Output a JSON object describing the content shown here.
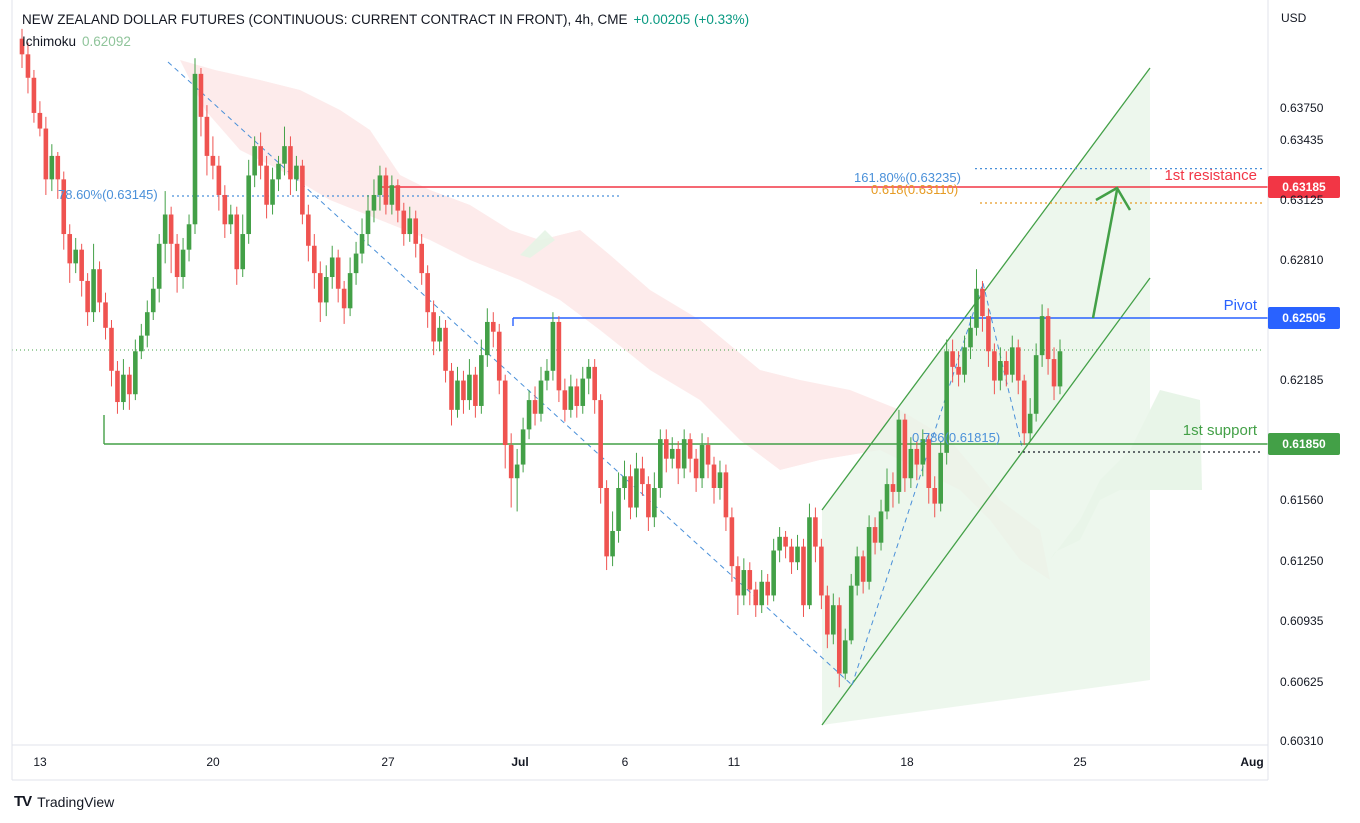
{
  "header": {
    "title": "NEW ZEALAND DOLLAR FUTURES (CONTINUOUS: CURRENT CONTRACT IN FRONT), 4h, CME",
    "change": "+0.00205 (+0.33%)",
    "indicator_name": "Ichimoku",
    "indicator_value": "0.62092"
  },
  "axis_currency": "USD",
  "brand": "TradingView",
  "colors": {
    "bull": "#43a047",
    "bear": "#ef5350",
    "resistance": "#f23645",
    "pivot": "#2962ff",
    "support": "#43a047",
    "cloud_bear": "#fce4e4",
    "cloud_bull": "#e6f4e6",
    "channel_fill": "#e8f5e9"
  },
  "chart_data": {
    "type": "candlestick",
    "y_axis": {
      "ticks": [
        "0.63750",
        "0.63435",
        "0.63125",
        "0.62810",
        "0.62185",
        "0.61560",
        "0.61250",
        "0.60935",
        "0.60625",
        "0.60310"
      ],
      "range": [
        0.6028,
        0.6395
      ]
    },
    "x_axis": {
      "labels": [
        "13",
        "20",
        "27",
        "Jul",
        "6",
        "11",
        "18",
        "25",
        "Aug"
      ]
    },
    "levels": [
      {
        "name": "1st resistance",
        "value": "0.63185"
      },
      {
        "name": "Pivot",
        "value": "0.62505"
      },
      {
        "name": "1st support",
        "value": "0.61850"
      }
    ],
    "fibonacci_labels": [
      {
        "text": "161.80%(0.63235)",
        "value": 0.63235
      },
      {
        "text": "0.618(0.63110)",
        "value": 0.6311
      },
      {
        "text": "78.60%(0.63145)",
        "value": 0.63145
      },
      {
        "text": "0.786(0.61815)",
        "value": 0.61815
      }
    ],
    "candles": [
      [
        0.639,
        0.6382,
        0.6395,
        0.6375
      ],
      [
        0.6382,
        0.637,
        0.6388,
        0.6362
      ],
      [
        0.637,
        0.6352,
        0.6374,
        0.6347
      ],
      [
        0.6352,
        0.6344,
        0.6358,
        0.634
      ],
      [
        0.6344,
        0.6318,
        0.635,
        0.631
      ],
      [
        0.6318,
        0.633,
        0.6336,
        0.6312
      ],
      [
        0.633,
        0.6318,
        0.6332,
        0.6308
      ],
      [
        0.6318,
        0.629,
        0.6322,
        0.6282
      ],
      [
        0.629,
        0.6275,
        0.6295,
        0.6265
      ],
      [
        0.6275,
        0.6282,
        0.6288,
        0.627
      ],
      [
        0.6282,
        0.6266,
        0.6285,
        0.6258
      ],
      [
        0.6266,
        0.625,
        0.627,
        0.6243
      ],
      [
        0.625,
        0.6272,
        0.6285,
        0.6245
      ],
      [
        0.6272,
        0.6255,
        0.6276,
        0.625
      ],
      [
        0.6255,
        0.6242,
        0.626,
        0.6236
      ],
      [
        0.6242,
        0.622,
        0.6246,
        0.6212
      ],
      [
        0.622,
        0.6204,
        0.6225,
        0.6198
      ],
      [
        0.6204,
        0.6218,
        0.6226,
        0.62
      ],
      [
        0.6218,
        0.6208,
        0.6222,
        0.62
      ],
      [
        0.6208,
        0.623,
        0.6236,
        0.6205
      ],
      [
        0.623,
        0.6238,
        0.6244,
        0.6226
      ],
      [
        0.6238,
        0.625,
        0.6256,
        0.6232
      ],
      [
        0.625,
        0.6262,
        0.6268,
        0.6246
      ],
      [
        0.6262,
        0.6285,
        0.629,
        0.6255
      ],
      [
        0.6285,
        0.63,
        0.6312,
        0.6275
      ],
      [
        0.63,
        0.6285,
        0.6304,
        0.627
      ],
      [
        0.6285,
        0.6268,
        0.629,
        0.626
      ],
      [
        0.6268,
        0.6282,
        0.6288,
        0.6262
      ],
      [
        0.6282,
        0.6295,
        0.63,
        0.6276
      ],
      [
        0.6295,
        0.6372,
        0.638,
        0.629
      ],
      [
        0.6372,
        0.635,
        0.6375,
        0.634
      ],
      [
        0.635,
        0.633,
        0.6356,
        0.632
      ],
      [
        0.633,
        0.6325,
        0.634,
        0.6318
      ],
      [
        0.6325,
        0.631,
        0.633,
        0.6302
      ],
      [
        0.631,
        0.6295,
        0.6315,
        0.6288
      ],
      [
        0.6295,
        0.63,
        0.6305,
        0.629
      ],
      [
        0.63,
        0.6272,
        0.6304,
        0.6264
      ],
      [
        0.6272,
        0.629,
        0.63,
        0.6268
      ],
      [
        0.629,
        0.632,
        0.6328,
        0.6285
      ],
      [
        0.632,
        0.6335,
        0.634,
        0.6314
      ],
      [
        0.6335,
        0.6325,
        0.6342,
        0.6318
      ],
      [
        0.6325,
        0.6305,
        0.633,
        0.6298
      ],
      [
        0.6305,
        0.6318,
        0.6324,
        0.63
      ],
      [
        0.6318,
        0.6326,
        0.633,
        0.6312
      ],
      [
        0.6326,
        0.6335,
        0.6345,
        0.632
      ],
      [
        0.6335,
        0.6318,
        0.634,
        0.631
      ],
      [
        0.6318,
        0.6325,
        0.633,
        0.6312
      ],
      [
        0.6325,
        0.63,
        0.6328,
        0.6295
      ],
      [
        0.63,
        0.6284,
        0.6305,
        0.6276
      ],
      [
        0.6284,
        0.627,
        0.629,
        0.6262
      ],
      [
        0.627,
        0.6255,
        0.6276,
        0.6245
      ],
      [
        0.6255,
        0.6268,
        0.6274,
        0.6248
      ],
      [
        0.6268,
        0.6278,
        0.6284,
        0.6262
      ],
      [
        0.6278,
        0.6262,
        0.6282,
        0.6255
      ],
      [
        0.6262,
        0.6252,
        0.6266,
        0.6244
      ],
      [
        0.6252,
        0.627,
        0.6278,
        0.6248
      ],
      [
        0.627,
        0.628,
        0.6286,
        0.6264
      ],
      [
        0.628,
        0.629,
        0.6298,
        0.6275
      ],
      [
        0.629,
        0.6302,
        0.631,
        0.6284
      ],
      [
        0.6302,
        0.631,
        0.6318,
        0.6296
      ],
      [
        0.631,
        0.632,
        0.6325,
        0.6302
      ],
      [
        0.632,
        0.6305,
        0.6324,
        0.63
      ],
      [
        0.6305,
        0.6315,
        0.632,
        0.63
      ],
      [
        0.6315,
        0.6302,
        0.6318,
        0.6296
      ],
      [
        0.6302,
        0.629,
        0.6306,
        0.6284
      ],
      [
        0.629,
        0.6298,
        0.6304,
        0.6286
      ],
      [
        0.6298,
        0.6285,
        0.6302,
        0.6278
      ],
      [
        0.6285,
        0.627,
        0.629,
        0.6264
      ],
      [
        0.627,
        0.625,
        0.6274,
        0.6242
      ],
      [
        0.625,
        0.6235,
        0.6256,
        0.6228
      ],
      [
        0.6235,
        0.6242,
        0.6248,
        0.623
      ],
      [
        0.6242,
        0.622,
        0.6246,
        0.6214
      ],
      [
        0.622,
        0.62,
        0.6224,
        0.6192
      ],
      [
        0.62,
        0.6215,
        0.6222,
        0.6196
      ],
      [
        0.6215,
        0.6205,
        0.622,
        0.6198
      ],
      [
        0.6205,
        0.6218,
        0.6226,
        0.62
      ],
      [
        0.6218,
        0.6202,
        0.6222,
        0.6196
      ],
      [
        0.6202,
        0.6228,
        0.6236,
        0.6198
      ],
      [
        0.6228,
        0.6245,
        0.6252,
        0.6222
      ],
      [
        0.6245,
        0.624,
        0.625,
        0.6232
      ],
      [
        0.624,
        0.6215,
        0.6244,
        0.6208
      ],
      [
        0.6215,
        0.6182,
        0.6218,
        0.617
      ],
      [
        0.6182,
        0.6165,
        0.6188,
        0.615
      ],
      [
        0.6165,
        0.6172,
        0.618,
        0.6148
      ],
      [
        0.6172,
        0.619,
        0.6196,
        0.6168
      ],
      [
        0.619,
        0.6205,
        0.621,
        0.6185
      ],
      [
        0.6205,
        0.6198,
        0.6212,
        0.6192
      ],
      [
        0.6198,
        0.6215,
        0.6222,
        0.6194
      ],
      [
        0.6215,
        0.622,
        0.6226,
        0.621
      ],
      [
        0.622,
        0.6245,
        0.625,
        0.6215
      ],
      [
        0.6245,
        0.621,
        0.6248,
        0.6204
      ],
      [
        0.621,
        0.62,
        0.6216,
        0.6194
      ],
      [
        0.62,
        0.6212,
        0.6218,
        0.6196
      ],
      [
        0.6212,
        0.6202,
        0.6216,
        0.6196
      ],
      [
        0.6202,
        0.6216,
        0.6222,
        0.6198
      ],
      [
        0.6216,
        0.6222,
        0.6226,
        0.6208
      ],
      [
        0.6222,
        0.6205,
        0.6226,
        0.6198
      ],
      [
        0.6205,
        0.616,
        0.6208,
        0.6152
      ],
      [
        0.616,
        0.6125,
        0.6164,
        0.6118
      ],
      [
        0.6125,
        0.6138,
        0.6148,
        0.612
      ],
      [
        0.6138,
        0.616,
        0.6168,
        0.6132
      ],
      [
        0.616,
        0.6166,
        0.6174,
        0.6154
      ],
      [
        0.6166,
        0.615,
        0.6172,
        0.6144
      ],
      [
        0.615,
        0.617,
        0.6178,
        0.6145
      ],
      [
        0.617,
        0.6162,
        0.6176,
        0.6156
      ],
      [
        0.6162,
        0.6145,
        0.6166,
        0.6138
      ],
      [
        0.6145,
        0.616,
        0.6168,
        0.614
      ],
      [
        0.616,
        0.6185,
        0.619,
        0.6155
      ],
      [
        0.6185,
        0.6175,
        0.619,
        0.6168
      ],
      [
        0.6175,
        0.618,
        0.6186,
        0.617
      ],
      [
        0.618,
        0.617,
        0.6184,
        0.6162
      ],
      [
        0.617,
        0.6185,
        0.619,
        0.6165
      ],
      [
        0.6185,
        0.6175,
        0.6188,
        0.6168
      ],
      [
        0.6175,
        0.6165,
        0.618,
        0.6158
      ],
      [
        0.6165,
        0.6182,
        0.6188,
        0.616
      ],
      [
        0.6182,
        0.6172,
        0.6186,
        0.6165
      ],
      [
        0.6172,
        0.616,
        0.6176,
        0.6152
      ],
      [
        0.616,
        0.6168,
        0.6174,
        0.6154
      ],
      [
        0.6168,
        0.6145,
        0.6172,
        0.6138
      ],
      [
        0.6145,
        0.612,
        0.615,
        0.6112
      ],
      [
        0.612,
        0.6105,
        0.6125,
        0.6095
      ],
      [
        0.6105,
        0.6118,
        0.6124,
        0.61
      ],
      [
        0.6118,
        0.6108,
        0.6122,
        0.61
      ],
      [
        0.6108,
        0.61,
        0.6112,
        0.6094
      ],
      [
        0.61,
        0.6112,
        0.6118,
        0.6096
      ],
      [
        0.6112,
        0.6105,
        0.6116,
        0.61
      ],
      [
        0.6105,
        0.6128,
        0.6134,
        0.6102
      ],
      [
        0.6128,
        0.6135,
        0.614,
        0.6122
      ],
      [
        0.6135,
        0.613,
        0.6138,
        0.6124
      ],
      [
        0.613,
        0.6122,
        0.6134,
        0.6116
      ],
      [
        0.6122,
        0.613,
        0.6136,
        0.6118
      ],
      [
        0.613,
        0.61,
        0.6134,
        0.6094
      ],
      [
        0.61,
        0.6145,
        0.6152,
        0.6098
      ],
      [
        0.6145,
        0.613,
        0.615,
        0.6122
      ],
      [
        0.613,
        0.6105,
        0.6134,
        0.6098
      ],
      [
        0.6105,
        0.6085,
        0.611,
        0.6078
      ],
      [
        0.6085,
        0.61,
        0.6106,
        0.608
      ],
      [
        0.61,
        0.6065,
        0.6104,
        0.6058
      ],
      [
        0.6065,
        0.6082,
        0.6088,
        0.6062
      ],
      [
        0.6082,
        0.611,
        0.6116,
        0.608
      ],
      [
        0.611,
        0.6125,
        0.613,
        0.6105
      ],
      [
        0.6125,
        0.6112,
        0.6128,
        0.6106
      ],
      [
        0.6112,
        0.614,
        0.6146,
        0.6108
      ],
      [
        0.614,
        0.6132,
        0.6145,
        0.6126
      ],
      [
        0.6132,
        0.6148,
        0.6154,
        0.6128
      ],
      [
        0.6148,
        0.6162,
        0.617,
        0.6144
      ],
      [
        0.6162,
        0.6158,
        0.6168,
        0.615
      ],
      [
        0.6158,
        0.6195,
        0.62,
        0.6152
      ],
      [
        0.6195,
        0.6165,
        0.6198,
        0.6158
      ],
      [
        0.6165,
        0.618,
        0.6186,
        0.616
      ],
      [
        0.618,
        0.6172,
        0.6184,
        0.6164
      ],
      [
        0.6172,
        0.6185,
        0.619,
        0.6166
      ],
      [
        0.6185,
        0.616,
        0.6188,
        0.6152
      ],
      [
        0.616,
        0.6152,
        0.6166,
        0.6145
      ],
      [
        0.6152,
        0.6178,
        0.6184,
        0.6148
      ],
      [
        0.6178,
        0.623,
        0.6236,
        0.6172
      ],
      [
        0.623,
        0.6222,
        0.6236,
        0.6214
      ],
      [
        0.6222,
        0.6218,
        0.623,
        0.6212
      ],
      [
        0.6218,
        0.6232,
        0.6238,
        0.6214
      ],
      [
        0.6232,
        0.6242,
        0.6248,
        0.6226
      ],
      [
        0.6242,
        0.6262,
        0.6272,
        0.6238
      ],
      [
        0.6262,
        0.6248,
        0.6266,
        0.624
      ],
      [
        0.6248,
        0.623,
        0.6252,
        0.6222
      ],
      [
        0.623,
        0.6215,
        0.6234,
        0.6208
      ],
      [
        0.6215,
        0.6225,
        0.6232,
        0.621
      ],
      [
        0.6225,
        0.6218,
        0.623,
        0.6212
      ],
      [
        0.6218,
        0.6232,
        0.6238,
        0.6214
      ],
      [
        0.6232,
        0.6215,
        0.6236,
        0.6208
      ],
      [
        0.6215,
        0.6188,
        0.6218,
        0.6182
      ],
      [
        0.6188,
        0.6198,
        0.6206,
        0.6184
      ],
      [
        0.6198,
        0.6228,
        0.6234,
        0.6194
      ],
      [
        0.6228,
        0.6248,
        0.6254,
        0.6222
      ],
      [
        0.6248,
        0.6226,
        0.6252,
        0.6218
      ],
      [
        0.6226,
        0.6212,
        0.6232,
        0.6205
      ],
      [
        0.6212,
        0.623,
        0.6236,
        0.6208
      ]
    ]
  }
}
